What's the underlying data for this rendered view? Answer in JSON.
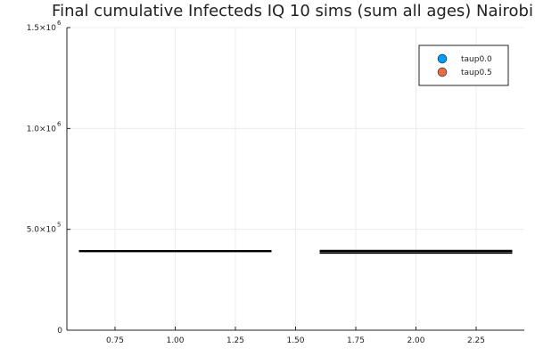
{
  "chart_data": {
    "type": "scatter",
    "title": "Final cumulative Infecteds IQ 10 sims (sum all ages) Nairobi",
    "xlabel": "",
    "ylabel": "",
    "xlim": [
      0.55,
      2.45
    ],
    "ylim": [
      0,
      1500000
    ],
    "grid": true,
    "legend_position": "top-right",
    "x_ticks": [
      {
        "value": 0.75,
        "label": "0.75"
      },
      {
        "value": 1.0,
        "label": "1.00"
      },
      {
        "value": 1.25,
        "label": "1.25"
      },
      {
        "value": 1.5,
        "label": "1.50"
      },
      {
        "value": 1.75,
        "label": "1.75"
      },
      {
        "value": 2.0,
        "label": "2.00"
      },
      {
        "value": 2.25,
        "label": "2.25"
      }
    ],
    "y_ticks": [
      {
        "value": 0,
        "base": "0",
        "exp": ""
      },
      {
        "value": 500000,
        "base": "5.0×10",
        "exp": "5"
      },
      {
        "value": 1000000,
        "base": "1.0×10",
        "exp": "6"
      },
      {
        "value": 1500000,
        "base": "1.5×10",
        "exp": "6"
      }
    ],
    "series": [
      {
        "name": "taup0.0",
        "color": "#009af9",
        "x_range": [
          0.6,
          1.4
        ],
        "values": [
          390000,
          392000,
          393000,
          394000
        ]
      },
      {
        "name": "taup0.5",
        "color": "#e26f46",
        "x_range": [
          1.6,
          2.4
        ],
        "values": [
          382000,
          390000,
          395000
        ]
      }
    ]
  }
}
